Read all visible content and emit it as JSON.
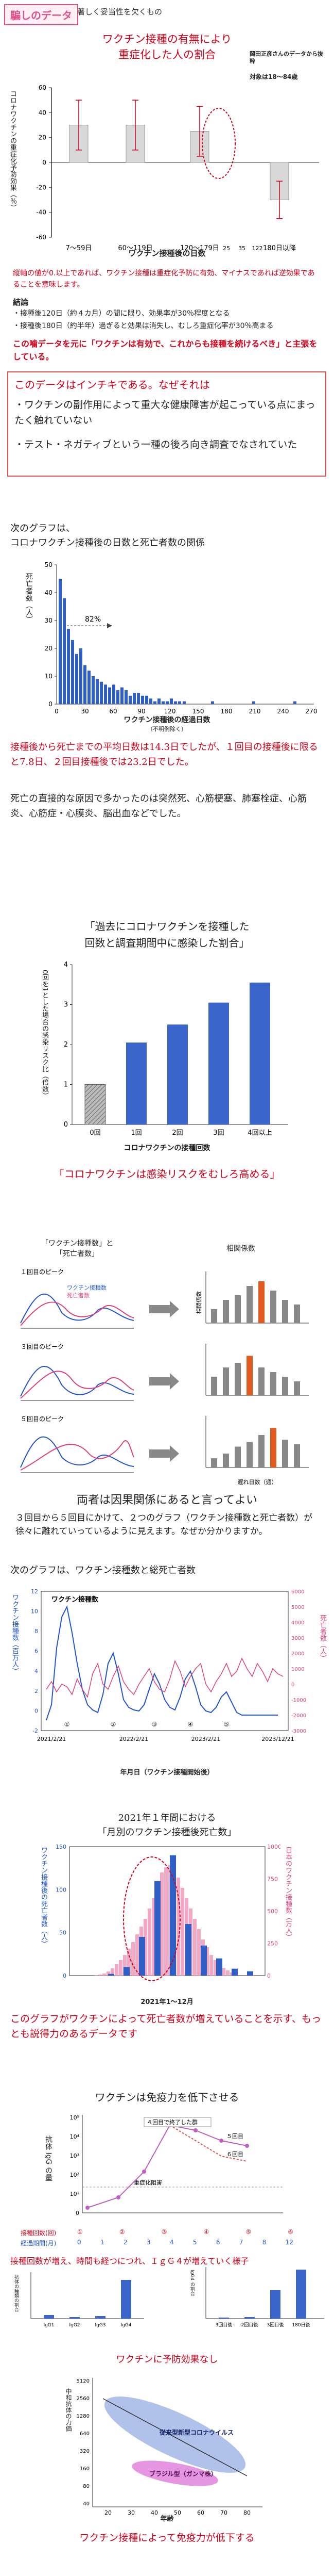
{
  "header": {
    "tag": "騙しのデータ",
    "subtitle": "著しく妥当性を欠くもの"
  },
  "s1": {
    "title_line1": "ワクチン接種の有無により",
    "title_line2": "重症化した人の割合",
    "source": "岡田正彦さんのデータから抜粋",
    "target": "対象は18〜84歳",
    "ylabel": "コロナワクチンの重症化予防効果（％）",
    "xlabel": "ワクチン接種後の日数",
    "note": "縦軸の値が0.以上であれば、ワクチン接種は重症化予防に有効、マイナスであれば逆効果であることを意味します。",
    "conclusion_head": "結論",
    "conclusion_1": "・接種後120日（約４カ月）の間に限り、効果率が30％程度となる",
    "conclusion_2": "・接種後180日（約半年）過ぎると効果は消失し、むしろ重症化率が30％高まる",
    "emphasis": "この噛データを元に「ワクチンは有効で、これからも接種を続けるべき」と主張をしている。"
  },
  "chart1": {
    "type": "bar",
    "categories": [
      "7〜59日",
      "60〜119日",
      "120〜179日",
      "180日以降"
    ],
    "values": [
      30,
      30,
      25,
      -30
    ],
    "ylim": [
      -60,
      60
    ],
    "yticks": [
      "60",
      "40",
      "20",
      "0",
      "-20",
      "-40",
      "-60"
    ],
    "extra_ticks": [
      "25",
      "35",
      "122"
    ]
  },
  "s2": {
    "head": "このデータはインチキである。なぜそれは",
    "item1": "・ワクチンの副作用によって重大な健康障害が起こっている点にまったく触れていない",
    "item2": "・テスト・ネガティブという一種の後ろ向き調査でなされていた"
  },
  "s3": {
    "intro_1": "次のグラフは、",
    "intro_2": "コロナワクチン接種後の日数と死亡者数の関係",
    "ylabel": "死亡者数（人）",
    "xlabel": "ワクチン接種後の経過日数",
    "xsub": "（不明例除く）",
    "annot": "82%",
    "para1": "接種後から死亡までの平均日数は14.3日でしたが、１回目の接種後に限ると7.8日、２回目接種後では23.2日でした。",
    "para2": "死亡の直接的な原因で多かったのは突然死、心筋梗塞、肺塞栓症、心筋炎、心筋症・心膜炎、脳出血などでした。"
  },
  "chart2": {
    "type": "bar",
    "x": [
      1,
      2,
      3,
      4,
      5,
      6,
      7,
      8,
      9,
      10,
      11,
      12,
      13,
      14,
      15,
      16,
      17,
      18,
      19,
      20,
      21,
      22,
      23,
      24,
      25,
      26,
      27,
      28,
      29,
      30
    ],
    "values": [
      45,
      38,
      27,
      23,
      18,
      20,
      14,
      12,
      10,
      9,
      8,
      7,
      6,
      7,
      5,
      6,
      5,
      3,
      4,
      4,
      3,
      3,
      2,
      1,
      2,
      1,
      1,
      2,
      1,
      1
    ],
    "yticks": [
      "50",
      "40",
      "30",
      "20",
      "10",
      "0"
    ],
    "xticks": [
      "0",
      "30",
      "60",
      "90",
      "120",
      "150",
      "180",
      "210",
      "240",
      "270"
    ]
  },
  "s4": {
    "title_line1": "「過去にコロナワクチンを接種した",
    "title_line2": "回数と調査期間中に感染した割合」",
    "ylabel": "0回を1とした場合の感染リスク比（倍数）",
    "xlabel": "コロナワクチンの接種回数",
    "caption": "「コロナワクチンは感染リスクをむしろ高める」"
  },
  "chart3": {
    "type": "bar",
    "categories": [
      "0回",
      "1回",
      "2回",
      "3回",
      "4回以上"
    ],
    "values": [
      1.0,
      2.05,
      2.5,
      3.05,
      3.55
    ],
    "ylim": [
      0,
      4
    ],
    "yticks": [
      "4",
      "3",
      "2",
      "1",
      "0"
    ]
  },
  "s5": {
    "left_title_1": "「ワクチン接種数」と",
    "left_title_2": "「死亡者数」",
    "right_title": "相関係数",
    "legend_vax": "ワクチン接種数",
    "legend_death": "死亡者数",
    "peak1": "１回目のピーク",
    "peak3": "３回目のピーク",
    "peak5": "５回目のピーク",
    "coef_ylabel": "相関係数",
    "coef_xlabel": "遅れ日数（週）",
    "caption": "両者は因果関係にあると言ってよい",
    "para": "３回目から５回目にかけて、２つのグラフ（ワクチン接種数と死亡者数）が徐々に離れていっているように見えます。なぜか分かりますか。"
  },
  "s6": {
    "intro": "次のグラフは、ワクチン接種数と総死亡者数",
    "legend": "ワクチン接種数",
    "ylabel_left": "ワクチン接種数（百万人）",
    "ylabel_right": "死亡者数（人）",
    "xlabel": "年月日（ワクチン接種開始後）",
    "dates": [
      "2021/2/21",
      "2022/2/21",
      "2023/2/21",
      "2023/12/21"
    ],
    "yticks_left": [
      "12",
      "10",
      "8",
      "6",
      "4",
      "2",
      "0",
      "-2"
    ],
    "yticks_right": [
      "6000",
      "5000",
      "4000",
      "3000",
      "2000",
      "1000",
      "0",
      "-1000",
      "-2000",
      "-3000"
    ],
    "markers": [
      "①",
      "②",
      "③",
      "④",
      "⑤"
    ]
  },
  "s7": {
    "title_line1": "2021年１年間における",
    "title_line2": "「月別のワクチン接種後死亡数」",
    "ylabel_left": "ワクチン接種後の死亡者数（人）",
    "ylabel_right": "日本のワクチン接種数（万人）",
    "xlabel": "2021年1〜12月",
    "caption": "このグラフがワクチンによって死亡者数が増えていることを示す、もっとも説得力のあるデータです"
  },
  "chart7": {
    "type": "bar",
    "categories": [
      "1",
      "2",
      "3",
      "4",
      "5",
      "6",
      "7",
      "8",
      "9",
      "10",
      "11",
      "12"
    ],
    "values": [
      0,
      0,
      2,
      10,
      45,
      110,
      140,
      60,
      35,
      20,
      8,
      5
    ],
    "yticks_left": [
      "150",
      "100",
      "50",
      "0"
    ],
    "yticks_right": [
      "1000",
      "750",
      "500",
      "250",
      "0"
    ]
  },
  "s8": {
    "title": "ワクチンは免疫力を低下させる",
    "ylabel": "抗体 IgG の量",
    "label_4": "４回目で終了した群",
    "label_5": "５回目",
    "label_6": "６回目",
    "label_base": "重症化阻害",
    "yticks": [
      "10⁵",
      "10⁴",
      "10³",
      "10²",
      "10¹",
      "0"
    ],
    "row1": "接種回数(回)",
    "row2": "経過期間(月)",
    "row1_vals": [
      "①",
      "②",
      "③",
      "④",
      "⑤",
      "⑥"
    ],
    "row2_vals": [
      "0",
      "1",
      "2",
      "3",
      "4",
      "5",
      "6",
      "7",
      "8",
      "12"
    ],
    "caption": "接種回数が増え、時間も経つにつれ、ＩｇＧ４が増えていく様子",
    "left_ylabel": "抗体の種類の割合",
    "right_ylabel": "IgG4 の割合",
    "left_cats": [
      "IgG1",
      "IgG2",
      "IgG3",
      "IgG4"
    ],
    "right_cats": [
      "3回目後",
      "2回目後",
      "3回目後",
      "180日後"
    ]
  },
  "s9": {
    "title": "ワクチンに予防効果なし",
    "ylabel": "中和抗体の力価",
    "label_a": "従来型新型コロナウイルス",
    "label_b": "ブラジル型（ガンマ株）",
    "xlabel": "年齢",
    "xticks": [
      "20",
      "30",
      "40",
      "50",
      "60",
      "70",
      "80"
    ],
    "yticks": [
      "5120",
      "2560",
      "1280",
      "640",
      "320",
      "160",
      "80",
      "40"
    ],
    "caption": "ワクチン接種によって免疫力が低下する"
  }
}
